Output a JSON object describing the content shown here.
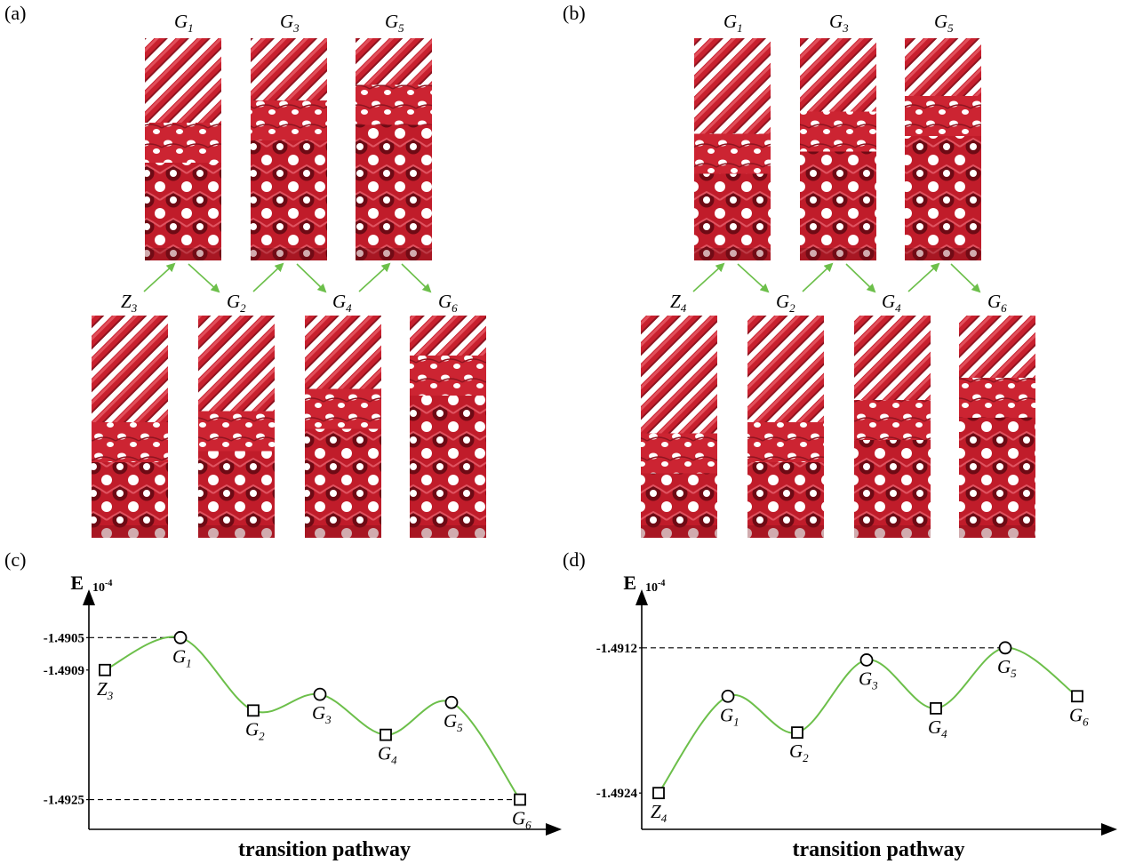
{
  "panels": {
    "a": "(a)",
    "b": "(b)",
    "c": "(c)",
    "d": "(d)"
  },
  "morphology_a": {
    "top": [
      {
        "base": "G",
        "sub": "1"
      },
      {
        "base": "G",
        "sub": "3"
      },
      {
        "base": "G",
        "sub": "5"
      }
    ],
    "bottom": [
      {
        "base": "Z",
        "sub": "3"
      },
      {
        "base": "G",
        "sub": "2"
      },
      {
        "base": "G",
        "sub": "4"
      },
      {
        "base": "G",
        "sub": "6"
      }
    ]
  },
  "morphology_b": {
    "top": [
      {
        "base": "G",
        "sub": "1"
      },
      {
        "base": "G",
        "sub": "3"
      },
      {
        "base": "G",
        "sub": "5"
      }
    ],
    "bottom": [
      {
        "base": "Z",
        "sub": "4"
      },
      {
        "base": "G",
        "sub": "2"
      },
      {
        "base": "G",
        "sub": "4"
      },
      {
        "base": "G",
        "sub": "6"
      }
    ]
  },
  "colors": {
    "structure": "#c8202e",
    "structure_dark": "#7a0e18",
    "arrow": "#6cbf4a",
    "curve": "#6cbf4a",
    "marker": "#000000"
  },
  "chart_data": [
    {
      "type": "line",
      "panel": "(c)",
      "ylabel": "E",
      "y_scale_label": "10",
      "y_scale_exp": "-4",
      "xlabel": "transition pathway",
      "y_ticks": [
        "-1.4905",
        "-1.4909",
        "-1.4925"
      ],
      "y_tick_values": [
        -1.4905,
        -1.4909,
        -1.4925
      ],
      "ylim": [
        -1.4929,
        -1.4902
      ],
      "reference_lines": [
        -1.4905,
        -1.4925
      ],
      "points": [
        {
          "base": "Z",
          "sub": "3",
          "marker": "square",
          "y": -1.4909
        },
        {
          "base": "G",
          "sub": "1",
          "marker": "circle",
          "y": -1.4905
        },
        {
          "base": "G",
          "sub": "2",
          "marker": "square",
          "y": -1.4914
        },
        {
          "base": "G",
          "sub": "3",
          "marker": "circle",
          "y": -1.4912
        },
        {
          "base": "G",
          "sub": "4",
          "marker": "square",
          "y": -1.4917
        },
        {
          "base": "G",
          "sub": "5",
          "marker": "circle",
          "y": -1.4913
        },
        {
          "base": "G",
          "sub": "6",
          "marker": "square",
          "y": -1.4925
        }
      ]
    },
    {
      "type": "line",
      "panel": "(d)",
      "ylabel": "E",
      "y_scale_label": "10",
      "y_scale_exp": "-4",
      "xlabel": "transition pathway",
      "y_ticks": [
        "-1.4912",
        "-1.4924"
      ],
      "y_tick_values": [
        -1.4912,
        -1.4924
      ],
      "ylim": [
        -1.4927,
        -1.4909
      ],
      "reference_lines": [
        -1.4912
      ],
      "points": [
        {
          "base": "Z",
          "sub": "4",
          "marker": "square",
          "y": -1.4924
        },
        {
          "base": "G",
          "sub": "1",
          "marker": "circle",
          "y": -1.4916
        },
        {
          "base": "G",
          "sub": "2",
          "marker": "square",
          "y": -1.4919
        },
        {
          "base": "G",
          "sub": "3",
          "marker": "circle",
          "y": -1.4913
        },
        {
          "base": "G",
          "sub": "4",
          "marker": "square",
          "y": -1.4917
        },
        {
          "base": "G",
          "sub": "5",
          "marker": "circle",
          "y": -1.4912
        },
        {
          "base": "G",
          "sub": "6",
          "marker": "square",
          "y": -1.4916
        }
      ]
    }
  ]
}
